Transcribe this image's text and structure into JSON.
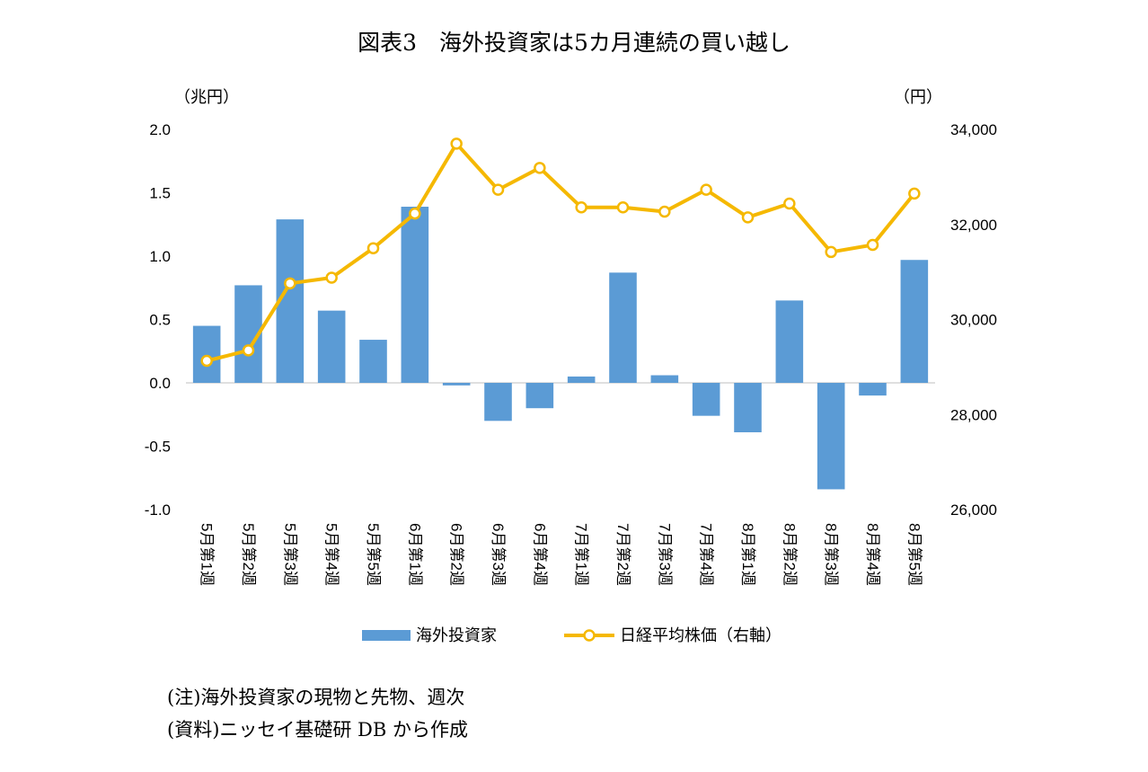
{
  "chart_data": {
    "type": "bar+line",
    "title": "図表3　海外投資家は5カ月連続の買い越し",
    "y_left_unit": "（兆円）",
    "y_right_unit": "（円）",
    "y_left_ticks": [
      "2.0",
      "1.5",
      "1.0",
      "0.5",
      "0.0",
      "-0.5",
      "-1.0"
    ],
    "y_right_ticks": [
      "34,000",
      "32,000",
      "30,000",
      "28,000",
      "26,000"
    ],
    "ylim_left": [
      -1.0,
      2.0
    ],
    "ylim_right": [
      26000,
      34000
    ],
    "categories": [
      "5月第1週",
      "5月第2週",
      "5月第3週",
      "5月第4週",
      "5月第5週",
      "6月第1週",
      "6月第2週",
      "6月第3週",
      "6月第4週",
      "7月第1週",
      "7月第2週",
      "7月第3週",
      "7月第4週",
      "8月第1週",
      "8月第2週",
      "8月第3週",
      "8月第4週",
      "8月第5週"
    ],
    "series": [
      {
        "name": "海外投資家",
        "type": "bar",
        "axis": "left",
        "color": "#5b9bd5",
        "values": [
          0.45,
          0.77,
          1.29,
          0.57,
          0.34,
          1.39,
          -0.02,
          -0.3,
          -0.2,
          0.05,
          0.87,
          0.06,
          -0.26,
          -0.39,
          0.65,
          -0.84,
          -0.1,
          0.97
        ]
      },
      {
        "name": "日経平均株価（右軸）",
        "type": "line",
        "axis": "right",
        "color": "#f5b800",
        "values": [
          29130,
          29350,
          30760,
          30880,
          31500,
          32230,
          33700,
          32730,
          33190,
          32360,
          32360,
          32270,
          32730,
          32150,
          32440,
          31420,
          31570,
          32650
        ]
      }
    ]
  },
  "notes": {
    "note1": "(注)海外投資家の現物と先物、週次",
    "note2": "(資料)ニッセイ基礎研 DB から作成"
  }
}
